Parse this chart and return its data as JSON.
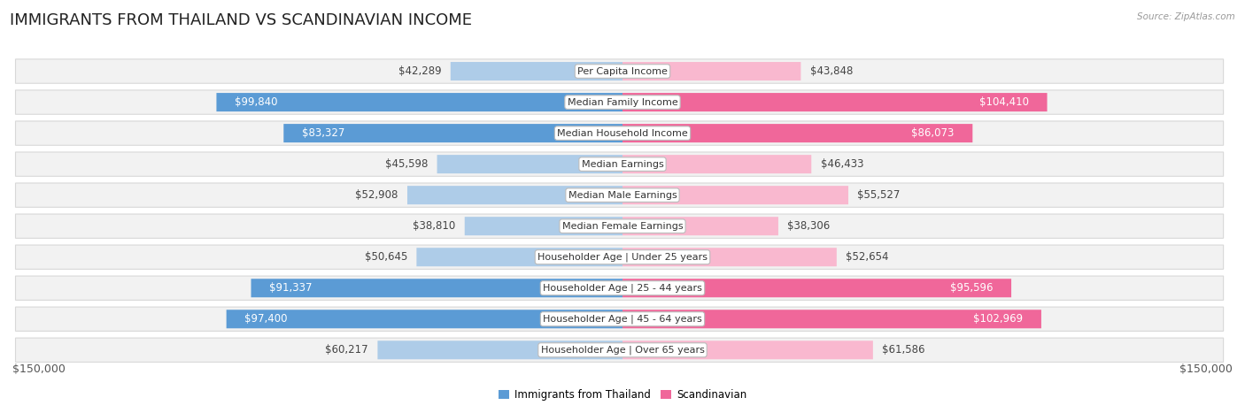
{
  "title": "IMMIGRANTS FROM THAILAND VS SCANDINAVIAN INCOME",
  "source": "Source: ZipAtlas.com",
  "categories": [
    "Per Capita Income",
    "Median Family Income",
    "Median Household Income",
    "Median Earnings",
    "Median Male Earnings",
    "Median Female Earnings",
    "Householder Age | Under 25 years",
    "Householder Age | 25 - 44 years",
    "Householder Age | 45 - 64 years",
    "Householder Age | Over 65 years"
  ],
  "thailand_values": [
    42289,
    99840,
    83327,
    45598,
    52908,
    38810,
    50645,
    91337,
    97400,
    60217
  ],
  "scandinavian_values": [
    43848,
    104410,
    86073,
    46433,
    55527,
    38306,
    52654,
    95596,
    102969,
    61586
  ],
  "thailand_labels": [
    "$42,289",
    "$99,840",
    "$83,327",
    "$45,598",
    "$52,908",
    "$38,810",
    "$50,645",
    "$91,337",
    "$97,400",
    "$60,217"
  ],
  "scandinavian_labels": [
    "$43,848",
    "$104,410",
    "$86,073",
    "$46,433",
    "$55,527",
    "$38,306",
    "$52,654",
    "$95,596",
    "$102,969",
    "$61,586"
  ],
  "thailand_color_light": "#aecce8",
  "thailand_color_dark": "#5b9bd5",
  "scandinavian_color_light": "#f9b8cf",
  "scandinavian_color_dark": "#f0679a",
  "row_bg_color": "#f2f2f2",
  "row_border_color": "#d8d8d8",
  "max_value": 150000,
  "xlabel_left": "$150,000",
  "xlabel_right": "$150,000",
  "legend_thailand": "Immigrants from Thailand",
  "legend_scandinavian": "Scandinavian",
  "title_fontsize": 13,
  "label_fontsize": 8.5,
  "category_fontsize": 8.0,
  "axis_fontsize": 9,
  "large_threshold": 67500
}
